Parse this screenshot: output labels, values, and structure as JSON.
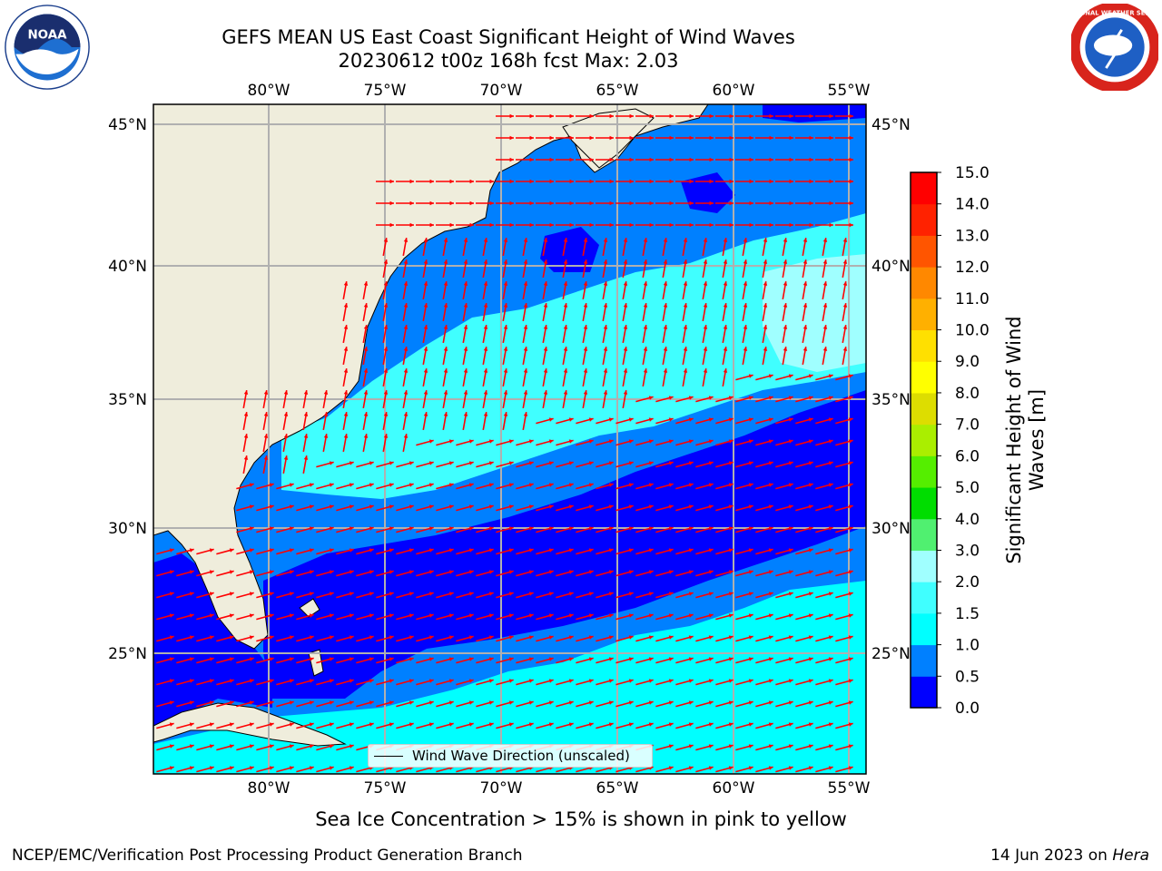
{
  "header": {
    "title_line1": "GEFS MEAN US East Coast Significant Height of Wind Waves",
    "title_line2": "20230612 t00z 168h fcst   Max: 2.03"
  },
  "logos": {
    "left": "noaa-logo",
    "right": "nws-logo",
    "right_ring_text": "NATIONAL WEATHER SERVICE"
  },
  "map": {
    "lon_labels": [
      "80°W",
      "75°W",
      "70°W",
      "65°W",
      "60°W",
      "55°W"
    ],
    "lat_labels": [
      "45°N",
      "40°N",
      "35°N",
      "30°N",
      "25°N"
    ],
    "legend_label": "Wind Wave Direction (unscaled)",
    "vector_color": "#ff0000",
    "land_color": "#efeddc",
    "coast_color": "#000000"
  },
  "colorbar": {
    "label": "Significant Height of Wind Waves [m]",
    "ticks": [
      "0.0",
      "0.5",
      "1.0",
      "1.5",
      "2.0",
      "3.0",
      "4.0",
      "5.0",
      "6.0",
      "7.0",
      "8.0",
      "9.0",
      "10.0",
      "11.0",
      "12.0",
      "13.0",
      "14.0",
      "15.0"
    ],
    "colors": [
      "#0000ff",
      "#0080ff",
      "#00ffff",
      "#40ffff",
      "#a0ffff",
      "#50f070",
      "#00dd00",
      "#55ee00",
      "#aaee00",
      "#dddd00",
      "#ffff00",
      "#ffe000",
      "#ffb000",
      "#ff8800",
      "#ff5500",
      "#ff2200",
      "#ff0000"
    ]
  },
  "footer": {
    "subtitle": "Sea Ice Concentration > 15% is shown in pink to yellow",
    "credit": "NCEP/EMC/Verification Post Processing Product Generation Branch",
    "date": "14 Jun 2023 on",
    "host": "Hera"
  }
}
